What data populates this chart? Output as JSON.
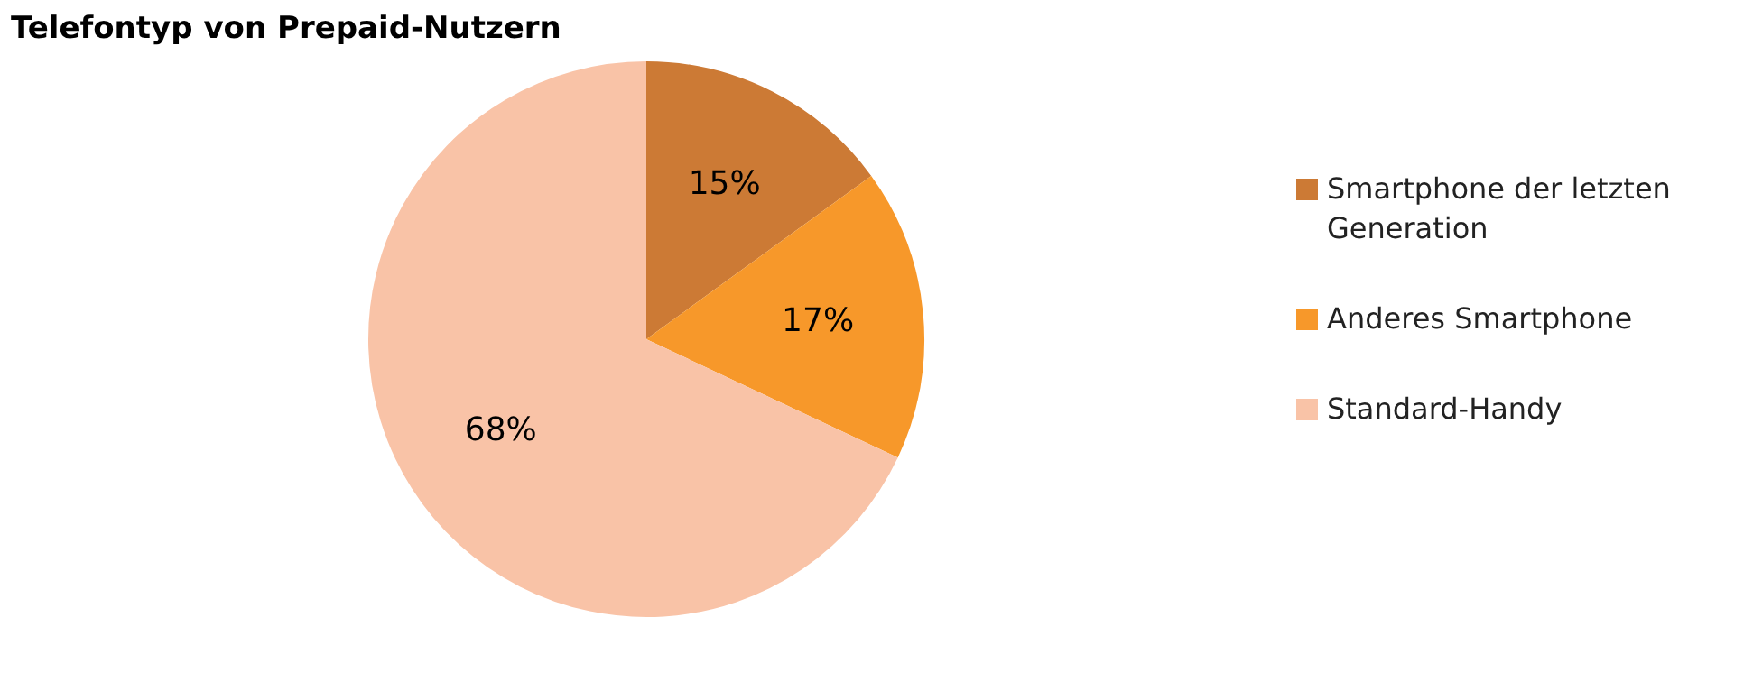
{
  "chart_data": {
    "type": "pie",
    "title": "Telefontyp von Prepaid-Nutzern",
    "categories": [
      "Smartphone der letzten Generation",
      "Anderes Smartphone",
      "Standard-Handy"
    ],
    "values": [
      15,
      17,
      68
    ],
    "colors": [
      "#cc7a35",
      "#f7982a",
      "#f9c3a7"
    ],
    "value_labels": [
      "15%",
      "17%",
      "68%"
    ],
    "legend": "right"
  }
}
